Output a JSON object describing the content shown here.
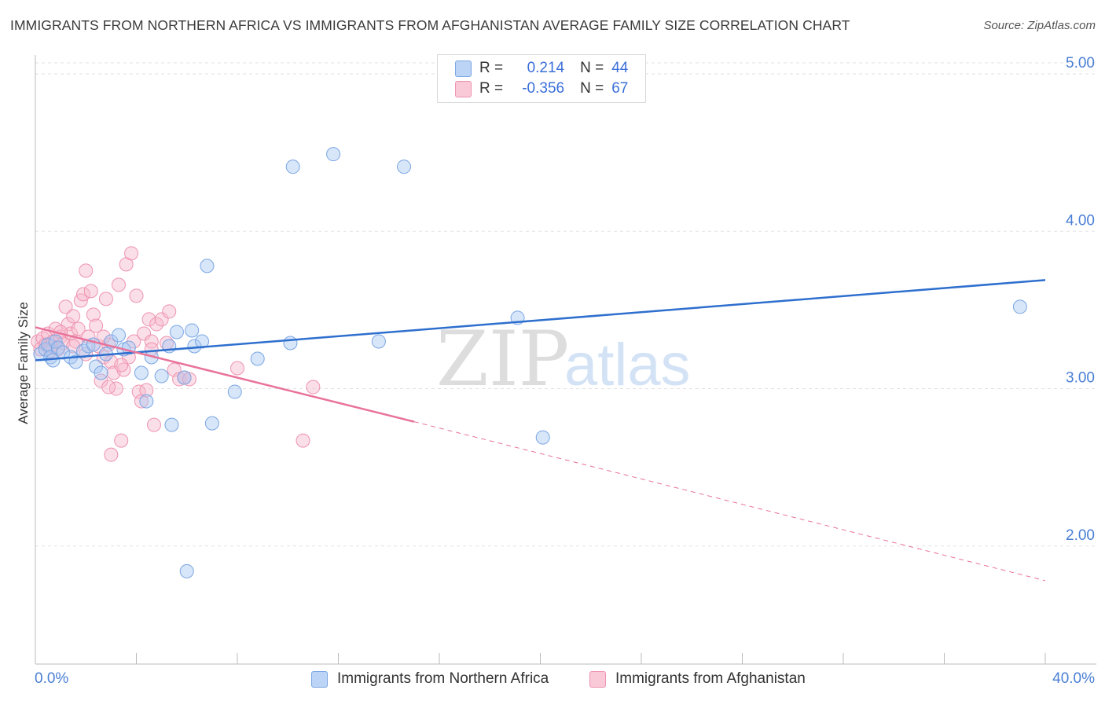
{
  "header": {
    "title": "IMMIGRANTS FROM NORTHERN AFRICA VS IMMIGRANTS FROM AFGHANISTAN AVERAGE FAMILY SIZE CORRELATION CHART",
    "source": "Source: ZipAtlas.com"
  },
  "watermark": {
    "zip": "ZIP",
    "atlas": "atlas"
  },
  "colors": {
    "blue_fill": "#a9c8f1",
    "blue_stroke": "#7aa6e3",
    "blue_line": "#2e6fce",
    "pink_fill": "#f6b8cb",
    "pink_stroke": "#ee93b0",
    "pink_line": "#e8729a",
    "axis_text": "#4a7fd4",
    "grid": "#e2e2e2"
  },
  "legend": {
    "rows": [
      {
        "r_label": "R =",
        "r_value": "0.214",
        "n_label": "N =",
        "n_value": "44"
      },
      {
        "r_label": "R =",
        "r_value": "-0.356",
        "n_label": "N =",
        "n_value": "67"
      }
    ]
  },
  "chart_data": {
    "type": "scatter",
    "ylabel": "Average Family Size",
    "xlim": [
      0,
      40
    ],
    "ylim": [
      1.25,
      5.12
    ],
    "x_tick_labels": [
      "0.0%",
      "40.0%"
    ],
    "y_ticks": [
      2,
      3,
      4,
      5
    ],
    "y_tick_labels": [
      "2.00",
      "3.00",
      "4.00",
      "5.00"
    ],
    "grid": true,
    "legend_placement": "top-center",
    "series": [
      {
        "name": "Immigrants from Northern Africa",
        "color": "#a9c8f1",
        "points": [
          [
            0.2,
            3.22
          ],
          [
            0.4,
            3.25
          ],
          [
            0.5,
            3.28
          ],
          [
            0.6,
            3.2
          ],
          [
            0.7,
            3.18
          ],
          [
            0.8,
            3.3
          ],
          [
            0.9,
            3.26
          ],
          [
            1.1,
            3.23
          ],
          [
            1.4,
            3.2
          ],
          [
            1.6,
            3.17
          ],
          [
            1.9,
            3.24
          ],
          [
            2.1,
            3.27
          ],
          [
            2.3,
            3.28
          ],
          [
            2.4,
            3.14
          ],
          [
            2.6,
            3.1
          ],
          [
            2.8,
            3.22
          ],
          [
            3.0,
            3.3
          ],
          [
            3.3,
            3.34
          ],
          [
            3.5,
            3.25
          ],
          [
            3.7,
            3.26
          ],
          [
            4.2,
            3.1
          ],
          [
            4.4,
            2.92
          ],
          [
            4.6,
            3.2
          ],
          [
            5.0,
            3.08
          ],
          [
            5.3,
            3.27
          ],
          [
            5.4,
            2.77
          ],
          [
            5.6,
            3.36
          ],
          [
            5.9,
            3.07
          ],
          [
            6.0,
            1.84
          ],
          [
            6.2,
            3.37
          ],
          [
            6.3,
            3.27
          ],
          [
            6.6,
            3.3
          ],
          [
            6.8,
            3.78
          ],
          [
            7.0,
            2.78
          ],
          [
            7.9,
            2.98
          ],
          [
            8.8,
            3.19
          ],
          [
            10.1,
            3.29
          ],
          [
            10.2,
            4.41
          ],
          [
            11.8,
            4.49
          ],
          [
            13.6,
            3.3
          ],
          [
            14.6,
            4.41
          ],
          [
            19.1,
            3.45
          ],
          [
            20.1,
            2.69
          ],
          [
            39.0,
            3.52
          ]
        ]
      },
      {
        "name": "Immigrants from Afghanistan",
        "color": "#f6b8cb",
        "points": [
          [
            0.1,
            3.3
          ],
          [
            0.2,
            3.25
          ],
          [
            0.3,
            3.32
          ],
          [
            0.4,
            3.28
          ],
          [
            0.5,
            3.35
          ],
          [
            0.6,
            3.27
          ],
          [
            0.7,
            3.3
          ],
          [
            0.8,
            3.38
          ],
          [
            0.9,
            3.25
          ],
          [
            1.0,
            3.33
          ],
          [
            1.1,
            3.29
          ],
          [
            1.2,
            3.52
          ],
          [
            1.3,
            3.41
          ],
          [
            1.4,
            3.35
          ],
          [
            1.5,
            3.46
          ],
          [
            1.6,
            3.3
          ],
          [
            1.7,
            3.38
          ],
          [
            1.8,
            3.56
          ],
          [
            1.9,
            3.6
          ],
          [
            2.0,
            3.75
          ],
          [
            2.1,
            3.33
          ],
          [
            2.2,
            3.62
          ],
          [
            2.3,
            3.47
          ],
          [
            2.4,
            3.4
          ],
          [
            2.5,
            3.27
          ],
          [
            2.6,
            3.05
          ],
          [
            2.7,
            3.2
          ],
          [
            2.8,
            3.57
          ],
          [
            2.9,
            3.28
          ],
          [
            3.0,
            3.17
          ],
          [
            3.1,
            3.1
          ],
          [
            3.2,
            3.0
          ],
          [
            3.3,
            3.66
          ],
          [
            3.4,
            2.67
          ],
          [
            3.5,
            3.12
          ],
          [
            3.6,
            3.79
          ],
          [
            3.7,
            3.2
          ],
          [
            3.8,
            3.86
          ],
          [
            3.9,
            3.3
          ],
          [
            4.0,
            3.59
          ],
          [
            4.1,
            2.98
          ],
          [
            4.2,
            2.92
          ],
          [
            4.3,
            3.35
          ],
          [
            4.4,
            2.99
          ],
          [
            4.5,
            3.44
          ],
          [
            4.6,
            3.3
          ],
          [
            4.7,
            2.77
          ],
          [
            4.8,
            3.41
          ],
          [
            5.0,
            3.44
          ],
          [
            5.2,
            3.29
          ],
          [
            5.3,
            3.49
          ],
          [
            5.5,
            3.12
          ],
          [
            5.7,
            3.06
          ],
          [
            5.9,
            3.07
          ],
          [
            6.1,
            3.06
          ],
          [
            3.0,
            2.58
          ],
          [
            2.9,
            3.01
          ],
          [
            1.5,
            3.27
          ],
          [
            2.0,
            3.22
          ],
          [
            8.0,
            3.13
          ],
          [
            10.6,
            2.67
          ],
          [
            11.0,
            3.01
          ],
          [
            4.6,
            3.25
          ],
          [
            3.4,
            3.15
          ],
          [
            1.0,
            3.36
          ],
          [
            0.6,
            3.24
          ],
          [
            2.7,
            3.33
          ]
        ]
      }
    ],
    "trend_lines": [
      {
        "series": "Immigrants from Northern Africa",
        "x": [
          0,
          40
        ],
        "y": [
          3.18,
          3.69
        ]
      },
      {
        "series": "Immigrants from Afghanistan",
        "x": [
          0,
          15
        ],
        "y": [
          3.39,
          2.79
        ],
        "dashed_extension_to": [
          40,
          1.78
        ]
      }
    ]
  },
  "bottom_legend": [
    {
      "label": "Immigrants from Northern Africa"
    },
    {
      "label": "Immigrants from Afghanistan"
    }
  ]
}
